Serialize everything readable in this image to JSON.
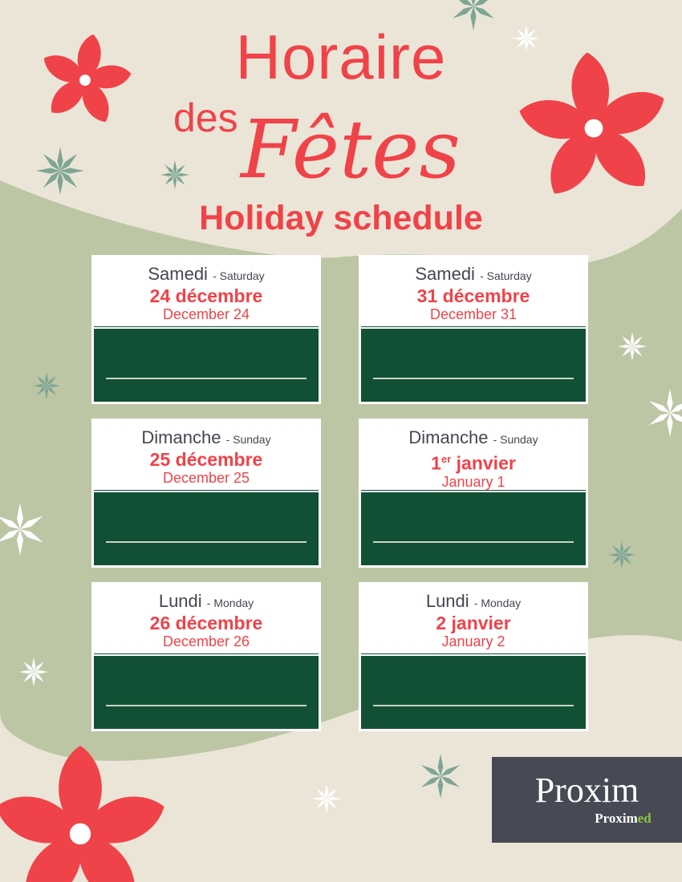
{
  "header": {
    "title_line1": "Horaire",
    "title_des": "des",
    "title_fetes": "Fêtes",
    "subtitle": "Holiday schedule"
  },
  "colors": {
    "red": "#ef4349",
    "green_panel": "#115034",
    "background": "#ebe5d8",
    "blob": "#bcc6a5",
    "logo_bg": "#474a55",
    "logo_accent": "#8cc63f"
  },
  "cards": [
    {
      "day_fr": "Samedi",
      "day_en": "- Saturday",
      "date_fr": "24 décembre",
      "date_en": "December 24"
    },
    {
      "day_fr": "Samedi",
      "day_en": "- Saturday",
      "date_fr": "31 décembre",
      "date_en": "December 31"
    },
    {
      "day_fr": "Dimanche",
      "day_en": "- Sunday",
      "date_fr": "25 décembre",
      "date_en": "December 25"
    },
    {
      "day_fr": "Dimanche",
      "day_en": "- Sunday",
      "date_fr_num": "1",
      "date_fr_sup": "er",
      "date_fr_rest": " janvier",
      "date_en": "January 1"
    },
    {
      "day_fr": "Lundi",
      "day_en": "- Monday",
      "date_fr": "26 décembre",
      "date_en": "December 26"
    },
    {
      "day_fr": "Lundi",
      "day_en": "- Monday",
      "date_fr": "2 janvier",
      "date_en": "January 2"
    }
  ],
  "logo": {
    "brand": "Proxim",
    "sub_brand_a": "Proxim",
    "sub_brand_b": "ed"
  }
}
